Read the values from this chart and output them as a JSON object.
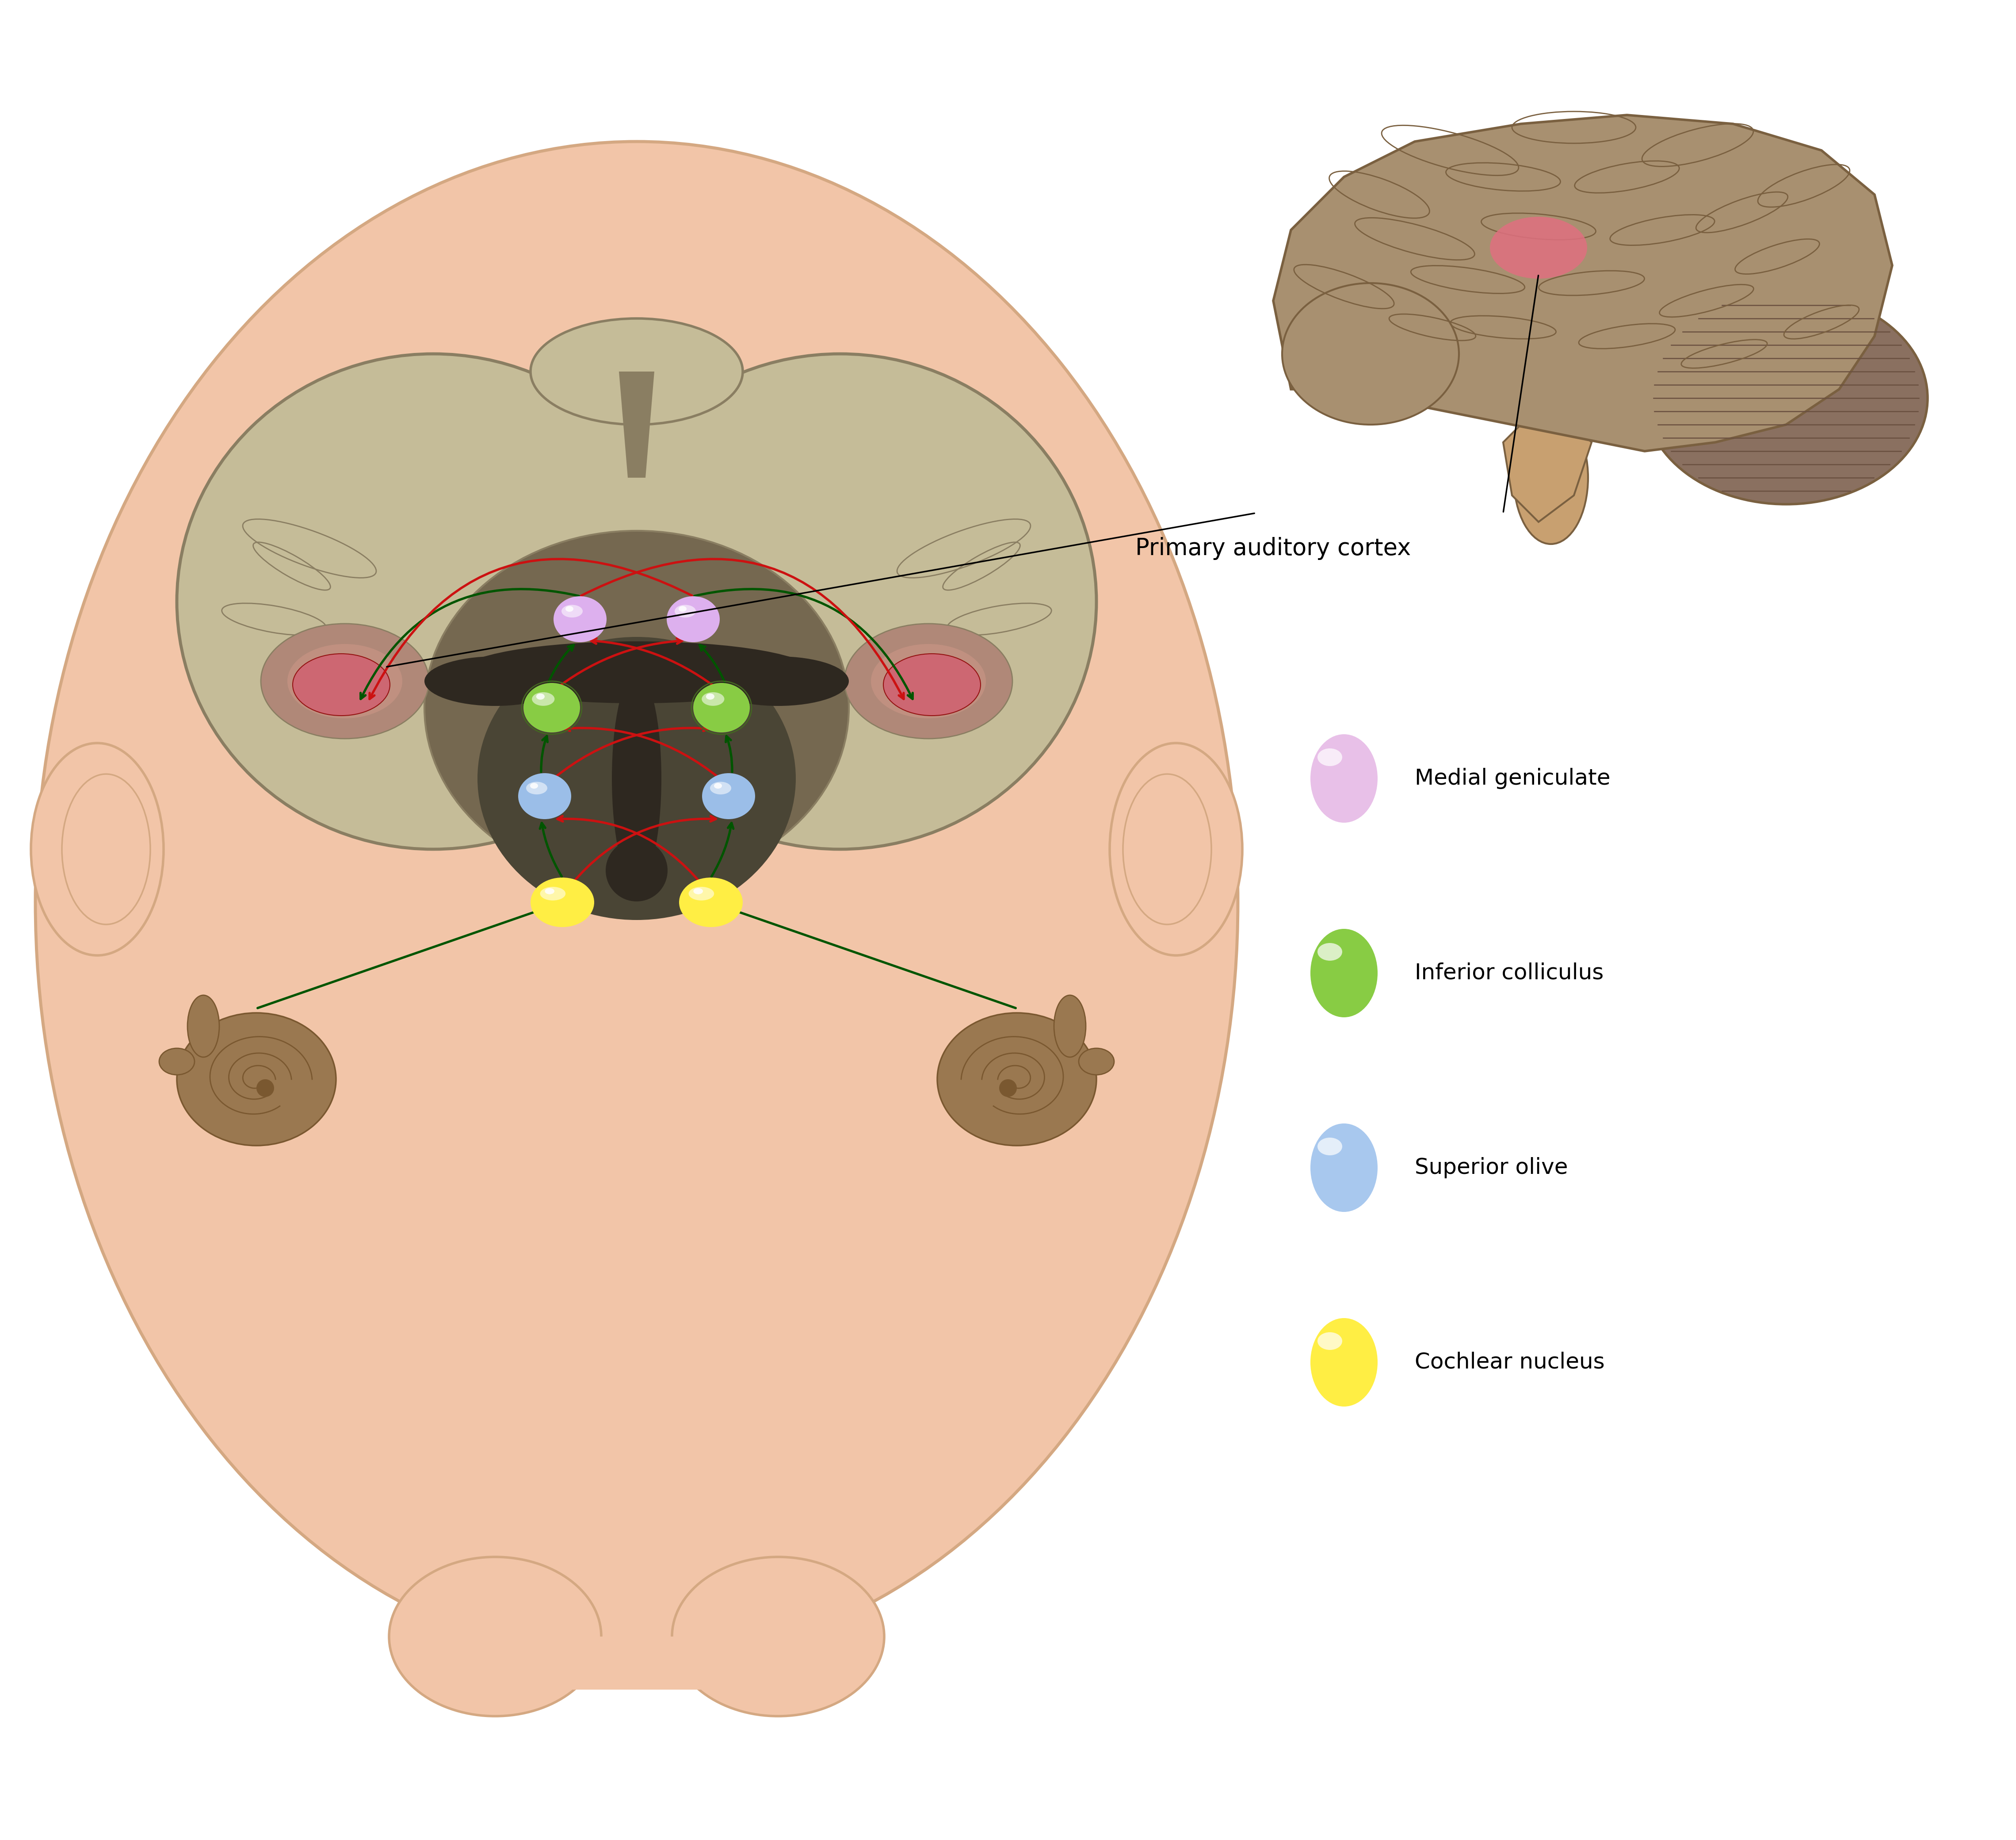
{
  "bg_color": "#ffffff",
  "head_color": "#F2C5A8",
  "head_outline": "#D4A882",
  "brain_fill": "#C5BC98",
  "brain_outline": "#8A7E62",
  "brain_dark_fill": "#8A7E62",
  "brain_inner_dark": "#6B6050",
  "ventricle_color": "#2E2820",
  "red_color": "#CC1111",
  "green_color": "#005500",
  "pink_nucleus": "#E8C0E8",
  "green_nucleus_fill": "#88CC44",
  "green_nucleus_dark": "#446622",
  "blue_nucleus": "#A8C8EE",
  "yellow_nucleus": "#FFEE44",
  "cochlea_fill": "#9A7850",
  "cochlea_outline": "#7A5830",
  "ear_color": "#C8A070",
  "cortex_highlight": "#D06070",
  "sulcus_dark": "#756850",
  "label_primary_cortex": "Primary auditory cortex",
  "label_medial": "Medial geniculate",
  "label_inferior": "Inferior colliculus",
  "label_superior": "Superior olive",
  "label_cochlear": "Cochlear nucleus",
  "legend_fontsize": 36,
  "label_fontsize": 38,
  "brain_lat_fill": "#A89070",
  "brain_lat_outline": "#7A6040",
  "cerebellum_fill": "#8A7060",
  "cerebellum_stripe": "#6A5040",
  "brainstem_fill": "#C8A070"
}
